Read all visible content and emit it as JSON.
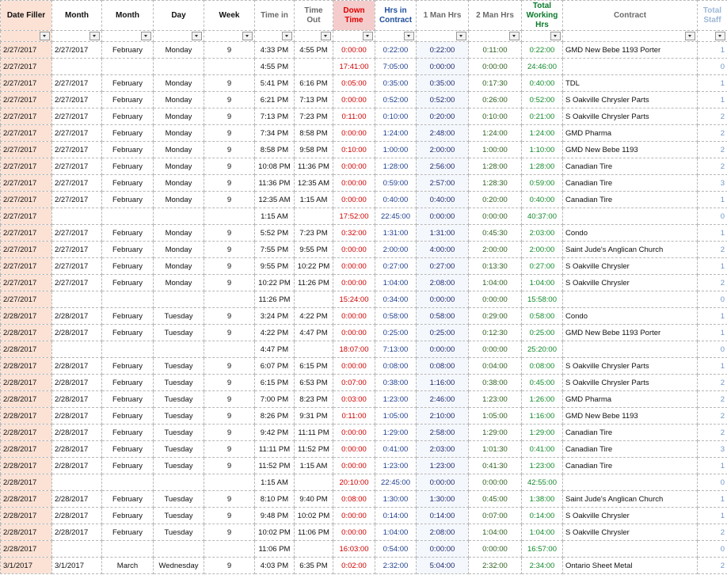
{
  "header": {
    "columns": [
      "Date Filler",
      "Month",
      "Month",
      "Day",
      "Week",
      "Time in",
      "Time Out",
      "Down Time",
      "Hrs in Contract",
      "1 Man Hrs",
      "2 Man Hrs",
      "Total Working Hrs",
      "Contract",
      "Total Staff"
    ]
  },
  "rows": [
    [
      "2/27/2017",
      "2/27/2017",
      "February",
      "Monday",
      9,
      "4:33 PM",
      "4:55 PM",
      "0:00:00",
      "0:22:00",
      "0:22:00",
      "0:11:00",
      "0:22:00",
      "GMD New Bebe 1193 Porter",
      1
    ],
    [
      "2/27/2017",
      null,
      null,
      null,
      null,
      "4:55 PM",
      null,
      "17:41:00",
      "7:05:00",
      "0:00:00",
      "0:00:00",
      "24:46:00",
      null,
      0
    ],
    [
      "2/27/2017",
      "2/27/2017",
      "February",
      "Monday",
      9,
      "5:41 PM",
      "6:16 PM",
      "0:05:00",
      "0:35:00",
      "0:35:00",
      "0:17:30",
      "0:40:00",
      "TDL",
      1
    ],
    [
      "2/27/2017",
      "2/27/2017",
      "February",
      "Monday",
      9,
      "6:21 PM",
      "7:13 PM",
      "0:00:00",
      "0:52:00",
      "0:52:00",
      "0:26:00",
      "0:52:00",
      "S Oakville Chrysler Parts",
      1
    ],
    [
      "2/27/2017",
      "2/27/2017",
      "February",
      "Monday",
      9,
      "7:13 PM",
      "7:23 PM",
      "0:11:00",
      "0:10:00",
      "0:20:00",
      "0:10:00",
      "0:21:00",
      "S Oakville Chrysler Parts",
      2
    ],
    [
      "2/27/2017",
      "2/27/2017",
      "February",
      "Monday",
      9,
      "7:34 PM",
      "8:58 PM",
      "0:00:00",
      "1:24:00",
      "2:48:00",
      "1:24:00",
      "1:24:00",
      "GMD Pharma",
      2
    ],
    [
      "2/27/2017",
      "2/27/2017",
      "February",
      "Monday",
      9,
      "8:58 PM",
      "9:58 PM",
      "0:10:00",
      "1:00:00",
      "2:00:00",
      "1:00:00",
      "1:10:00",
      "GMD New Bebe 1193",
      2
    ],
    [
      "2/27/2017",
      "2/27/2017",
      "February",
      "Monday",
      9,
      "10:08 PM",
      "11:36 PM",
      "0:00:00",
      "1:28:00",
      "2:56:00",
      "1:28:00",
      "1:28:00",
      "Canadian Tire",
      2
    ],
    [
      "2/27/2017",
      "2/27/2017",
      "February",
      "Monday",
      9,
      "11:36 PM",
      "12:35 AM",
      "0:00:00",
      "0:59:00",
      "2:57:00",
      "1:28:30",
      "0:59:00",
      "Canadian Tire",
      3
    ],
    [
      "2/27/2017",
      "2/27/2017",
      "February",
      "Monday",
      9,
      "12:35 AM",
      "1:15 AM",
      "0:00:00",
      "0:40:00",
      "0:40:00",
      "0:20:00",
      "0:40:00",
      "Canadian Tire",
      1
    ],
    [
      "2/27/2017",
      null,
      null,
      null,
      null,
      "1:15 AM",
      null,
      "17:52:00",
      "22:45:00",
      "0:00:00",
      "0:00:00",
      "40:37:00",
      null,
      0
    ],
    [
      "2/27/2017",
      "2/27/2017",
      "February",
      "Monday",
      9,
      "5:52 PM",
      "7:23 PM",
      "0:32:00",
      "1:31:00",
      "1:31:00",
      "0:45:30",
      "2:03:00",
      "Condo",
      1
    ],
    [
      "2/27/2017",
      "2/27/2017",
      "February",
      "Monday",
      9,
      "7:55 PM",
      "9:55 PM",
      "0:00:00",
      "2:00:00",
      "4:00:00",
      "2:00:00",
      "2:00:00",
      "Saint Jude's Anglican Church",
      2
    ],
    [
      "2/27/2017",
      "2/27/2017",
      "February",
      "Monday",
      9,
      "9:55 PM",
      "10:22 PM",
      "0:00:00",
      "0:27:00",
      "0:27:00",
      "0:13:30",
      "0:27:00",
      "S Oakville Chrysler",
      1
    ],
    [
      "2/27/2017",
      "2/27/2017",
      "February",
      "Monday",
      9,
      "10:22 PM",
      "11:26 PM",
      "0:00:00",
      "1:04:00",
      "2:08:00",
      "1:04:00",
      "1:04:00",
      "S Oakville Chrysler",
      2
    ],
    [
      "2/27/2017",
      null,
      null,
      null,
      null,
      "11:26 PM",
      null,
      "15:24:00",
      "0:34:00",
      "0:00:00",
      "0:00:00",
      "15:58:00",
      null,
      0
    ],
    [
      "2/28/2017",
      "2/28/2017",
      "February",
      "Tuesday",
      9,
      "3:24 PM",
      "4:22 PM",
      "0:00:00",
      "0:58:00",
      "0:58:00",
      "0:29:00",
      "0:58:00",
      "Condo",
      1
    ],
    [
      "2/28/2017",
      "2/28/2017",
      "February",
      "Tuesday",
      9,
      "4:22 PM",
      "4:47 PM",
      "0:00:00",
      "0:25:00",
      "0:25:00",
      "0:12:30",
      "0:25:00",
      "GMD New Bebe 1193 Porter",
      1
    ],
    [
      "2/28/2017",
      null,
      null,
      null,
      null,
      "4:47 PM",
      null,
      "18:07:00",
      "7:13:00",
      "0:00:00",
      "0:00:00",
      "25:20:00",
      null,
      0
    ],
    [
      "2/28/2017",
      "2/28/2017",
      "February",
      "Tuesday",
      9,
      "6:07 PM",
      "6:15 PM",
      "0:00:00",
      "0:08:00",
      "0:08:00",
      "0:04:00",
      "0:08:00",
      "S Oakville Chrysler Parts",
      1
    ],
    [
      "2/28/2017",
      "2/28/2017",
      "February",
      "Tuesday",
      9,
      "6:15 PM",
      "6:53 PM",
      "0:07:00",
      "0:38:00",
      "1:16:00",
      "0:38:00",
      "0:45:00",
      "S Oakville Chrysler Parts",
      2
    ],
    [
      "2/28/2017",
      "2/28/2017",
      "February",
      "Tuesday",
      9,
      "7:00 PM",
      "8:23 PM",
      "0:03:00",
      "1:23:00",
      "2:46:00",
      "1:23:00",
      "1:26:00",
      "GMD Pharma",
      2
    ],
    [
      "2/28/2017",
      "2/28/2017",
      "February",
      "Tuesday",
      9,
      "8:26 PM",
      "9:31 PM",
      "0:11:00",
      "1:05:00",
      "2:10:00",
      "1:05:00",
      "1:16:00",
      "GMD New Bebe 1193",
      2
    ],
    [
      "2/28/2017",
      "2/28/2017",
      "February",
      "Tuesday",
      9,
      "9:42 PM",
      "11:11 PM",
      "0:00:00",
      "1:29:00",
      "2:58:00",
      "1:29:00",
      "1:29:00",
      "Canadian Tire",
      2
    ],
    [
      "2/28/2017",
      "2/28/2017",
      "February",
      "Tuesday",
      9,
      "11:11 PM",
      "11:52 PM",
      "0:00:00",
      "0:41:00",
      "2:03:00",
      "1:01:30",
      "0:41:00",
      "Canadian Tire",
      3
    ],
    [
      "2/28/2017",
      "2/28/2017",
      "February",
      "Tuesday",
      9,
      "11:52 PM",
      "1:15 AM",
      "0:00:00",
      "1:23:00",
      "1:23:00",
      "0:41:30",
      "1:23:00",
      "Canadian Tire",
      1
    ],
    [
      "2/28/2017",
      null,
      null,
      null,
      null,
      "1:15 AM",
      null,
      "20:10:00",
      "22:45:00",
      "0:00:00",
      "0:00:00",
      "42:55:00",
      null,
      0
    ],
    [
      "2/28/2017",
      "2/28/2017",
      "February",
      "Tuesday",
      9,
      "8:10 PM",
      "9:40 PM",
      "0:08:00",
      "1:30:00",
      "1:30:00",
      "0:45:00",
      "1:38:00",
      "Saint Jude's Anglican Church",
      1
    ],
    [
      "2/28/2017",
      "2/28/2017",
      "February",
      "Tuesday",
      9,
      "9:48 PM",
      "10:02 PM",
      "0:00:00",
      "0:14:00",
      "0:14:00",
      "0:07:00",
      "0:14:00",
      "S Oakville Chrysler",
      1
    ],
    [
      "2/28/2017",
      "2/28/2017",
      "February",
      "Tuesday",
      9,
      "10:02 PM",
      "11:06 PM",
      "0:00:00",
      "1:04:00",
      "2:08:00",
      "1:04:00",
      "1:04:00",
      "S Oakville Chrysler",
      2
    ],
    [
      "2/28/2017",
      null,
      null,
      null,
      null,
      "11:06 PM",
      null,
      "16:03:00",
      "0:54:00",
      "0:00:00",
      "0:00:00",
      "16:57:00",
      null,
      0
    ],
    [
      "3/1/2017",
      "3/1/2017",
      "March",
      "Wednesday",
      9,
      "4:03 PM",
      "6:35 PM",
      "0:02:00",
      "2:32:00",
      "5:04:00",
      "2:32:00",
      "2:34:00",
      "Ontario Sheet Metal",
      2
    ]
  ]
}
